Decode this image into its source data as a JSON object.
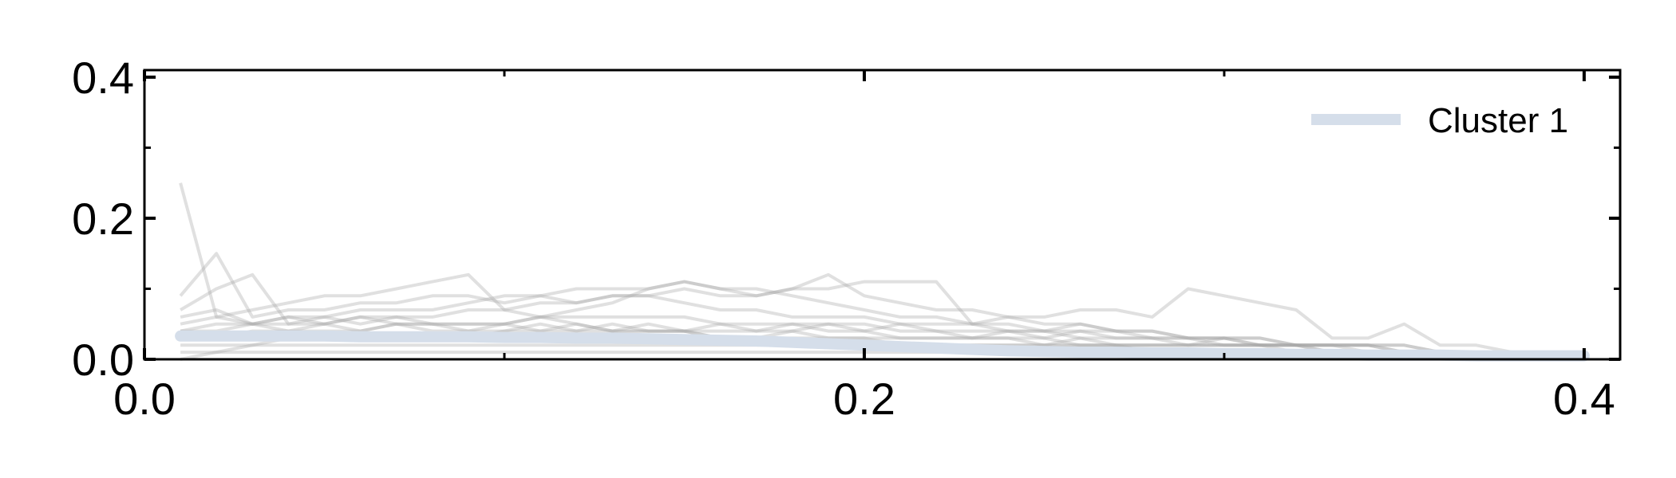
{
  "chart_data": {
    "type": "line",
    "title": "",
    "xlabel": "",
    "ylabel": "",
    "xlim": [
      0.0,
      0.41
    ],
    "ylim": [
      0.0,
      0.41
    ],
    "x_ticks": [
      0.0,
      0.2,
      0.4
    ],
    "y_ticks": [
      0.0,
      0.2,
      0.4
    ],
    "x_tick_labels": [
      "0.0",
      "0.2",
      "0.4"
    ],
    "y_tick_labels": [
      "0.0",
      "0.2",
      "0.4"
    ],
    "grid": false,
    "legend": {
      "position": "top-right",
      "entries": [
        "Cluster 1"
      ]
    },
    "colors": {
      "background_lines": "#a6a6a6",
      "cluster": "#d5deea",
      "axes": "#000000"
    },
    "x": [
      0.01,
      0.02,
      0.03,
      0.04,
      0.05,
      0.06,
      0.07,
      0.08,
      0.09,
      0.1,
      0.11,
      0.12,
      0.13,
      0.14,
      0.15,
      0.16,
      0.17,
      0.18,
      0.19,
      0.2,
      0.21,
      0.22,
      0.23,
      0.24,
      0.25,
      0.26,
      0.27,
      0.28,
      0.29,
      0.3,
      0.31,
      0.32,
      0.33,
      0.34,
      0.35,
      0.36,
      0.37,
      0.38,
      0.39,
      0.4
    ],
    "background_series": [
      [
        0.25,
        0.06,
        0.05,
        0.06,
        0.06,
        0.05,
        0.06,
        0.05,
        0.05,
        0.05,
        0.04,
        0.05,
        0.04,
        0.04,
        0.04,
        0.03,
        0.03,
        0.03,
        0.03,
        0.03,
        0.02,
        0.02,
        0.02,
        0.02,
        0.02,
        0.02,
        0.02,
        0.01,
        0.01,
        0.01,
        0.01,
        0.01,
        0.01,
        0.01,
        0.01,
        0.01,
        0.01,
        0.0,
        0.0,
        0.0
      ],
      [
        0.09,
        0.15,
        0.06,
        0.07,
        0.07,
        0.08,
        0.08,
        0.09,
        0.09,
        0.08,
        0.09,
        0.1,
        0.1,
        0.1,
        0.11,
        0.1,
        0.1,
        0.09,
        0.08,
        0.07,
        0.06,
        0.06,
        0.05,
        0.05,
        0.04,
        0.04,
        0.04,
        0.03,
        0.03,
        0.03,
        0.02,
        0.02,
        0.02,
        0.02,
        0.01,
        0.01,
        0.01,
        0.01,
        0.01,
        0.0
      ],
      [
        0.07,
        0.1,
        0.12,
        0.05,
        0.06,
        0.07,
        0.07,
        0.07,
        0.08,
        0.09,
        0.09,
        0.08,
        0.09,
        0.09,
        0.1,
        0.09,
        0.09,
        0.1,
        0.12,
        0.09,
        0.08,
        0.07,
        0.07,
        0.06,
        0.05,
        0.05,
        0.04,
        0.04,
        0.03,
        0.03,
        0.03,
        0.02,
        0.02,
        0.02,
        0.02,
        0.01,
        0.01,
        0.01,
        0.01,
        0.0
      ],
      [
        0.05,
        0.06,
        0.07,
        0.08,
        0.09,
        0.09,
        0.1,
        0.11,
        0.12,
        0.07,
        0.06,
        0.07,
        0.08,
        0.1,
        0.11,
        0.1,
        0.09,
        0.1,
        0.1,
        0.11,
        0.11,
        0.11,
        0.05,
        0.06,
        0.06,
        0.07,
        0.07,
        0.06,
        0.1,
        0.09,
        0.08,
        0.07,
        0.03,
        0.03,
        0.05,
        0.02,
        0.02,
        0.01,
        0.01,
        0.0
      ],
      [
        0.04,
        0.04,
        0.05,
        0.05,
        0.05,
        0.06,
        0.06,
        0.06,
        0.07,
        0.07,
        0.08,
        0.08,
        0.09,
        0.09,
        0.08,
        0.07,
        0.07,
        0.06,
        0.06,
        0.06,
        0.05,
        0.05,
        0.05,
        0.04,
        0.04,
        0.05,
        0.04,
        0.04,
        0.03,
        0.03,
        0.03,
        0.02,
        0.02,
        0.02,
        0.02,
        0.01,
        0.01,
        0.01,
        0.01,
        0.0
      ],
      [
        0.03,
        0.03,
        0.04,
        0.04,
        0.04,
        0.04,
        0.05,
        0.05,
        0.05,
        0.05,
        0.06,
        0.06,
        0.06,
        0.06,
        0.06,
        0.05,
        0.05,
        0.05,
        0.05,
        0.05,
        0.04,
        0.04,
        0.04,
        0.04,
        0.04,
        0.03,
        0.03,
        0.03,
        0.03,
        0.02,
        0.02,
        0.02,
        0.02,
        0.02,
        0.01,
        0.01,
        0.01,
        0.01,
        0.01,
        0.0
      ],
      [
        0.02,
        0.02,
        0.02,
        0.03,
        0.03,
        0.03,
        0.03,
        0.03,
        0.03,
        0.04,
        0.04,
        0.04,
        0.04,
        0.04,
        0.04,
        0.04,
        0.04,
        0.04,
        0.03,
        0.03,
        0.03,
        0.03,
        0.03,
        0.03,
        0.03,
        0.02,
        0.02,
        0.02,
        0.02,
        0.02,
        0.02,
        0.02,
        0.01,
        0.01,
        0.01,
        0.01,
        0.01,
        0.01,
        0.0,
        0.0
      ],
      [
        0.01,
        0.01,
        0.02,
        0.02,
        0.02,
        0.02,
        0.02,
        0.02,
        0.02,
        0.02,
        0.02,
        0.02,
        0.02,
        0.02,
        0.02,
        0.02,
        0.02,
        0.02,
        0.02,
        0.02,
        0.02,
        0.02,
        0.02,
        0.02,
        0.02,
        0.02,
        0.02,
        0.02,
        0.02,
        0.02,
        0.02,
        0.02,
        0.01,
        0.01,
        0.01,
        0.01,
        0.01,
        0.01,
        0.01,
        0.0
      ],
      [
        0.0,
        0.01,
        0.01,
        0.01,
        0.01,
        0.01,
        0.01,
        0.01,
        0.01,
        0.01,
        0.01,
        0.01,
        0.01,
        0.01,
        0.01,
        0.01,
        0.01,
        0.01,
        0.01,
        0.01,
        0.01,
        0.01,
        0.01,
        0.01,
        0.01,
        0.01,
        0.01,
        0.01,
        0.01,
        0.01,
        0.01,
        0.01,
        0.01,
        0.01,
        0.01,
        0.01,
        0.0,
        0.0,
        0.0,
        0.0
      ],
      [
        0.06,
        0.07,
        0.05,
        0.06,
        0.05,
        0.06,
        0.05,
        0.04,
        0.04,
        0.04,
        0.05,
        0.04,
        0.05,
        0.04,
        0.04,
        0.03,
        0.03,
        0.04,
        0.05,
        0.04,
        0.03,
        0.03,
        0.03,
        0.03,
        0.02,
        0.03,
        0.02,
        0.02,
        0.02,
        0.02,
        0.02,
        0.01,
        0.01,
        0.01,
        0.01,
        0.01,
        0.01,
        0.0,
        0.0,
        0.0
      ],
      [
        0.04,
        0.05,
        0.05,
        0.04,
        0.05,
        0.04,
        0.05,
        0.05,
        0.04,
        0.05,
        0.06,
        0.05,
        0.04,
        0.05,
        0.04,
        0.05,
        0.04,
        0.05,
        0.04,
        0.04,
        0.05,
        0.04,
        0.03,
        0.04,
        0.03,
        0.04,
        0.03,
        0.03,
        0.02,
        0.03,
        0.02,
        0.02,
        0.02,
        0.01,
        0.01,
        0.01,
        0.01,
        0.01,
        0.0,
        0.0
      ]
    ],
    "series": [
      {
        "name": "Cluster 1",
        "values": [
          0.033,
          0.033,
          0.033,
          0.033,
          0.033,
          0.032,
          0.032,
          0.032,
          0.032,
          0.031,
          0.031,
          0.03,
          0.03,
          0.029,
          0.028,
          0.027,
          0.026,
          0.024,
          0.022,
          0.02,
          0.018,
          0.016,
          0.014,
          0.012,
          0.011,
          0.01,
          0.01,
          0.009,
          0.009,
          0.008,
          0.008,
          0.007,
          0.007,
          0.006,
          0.006,
          0.006,
          0.005,
          0.005,
          0.005,
          0.005
        ]
      }
    ]
  }
}
